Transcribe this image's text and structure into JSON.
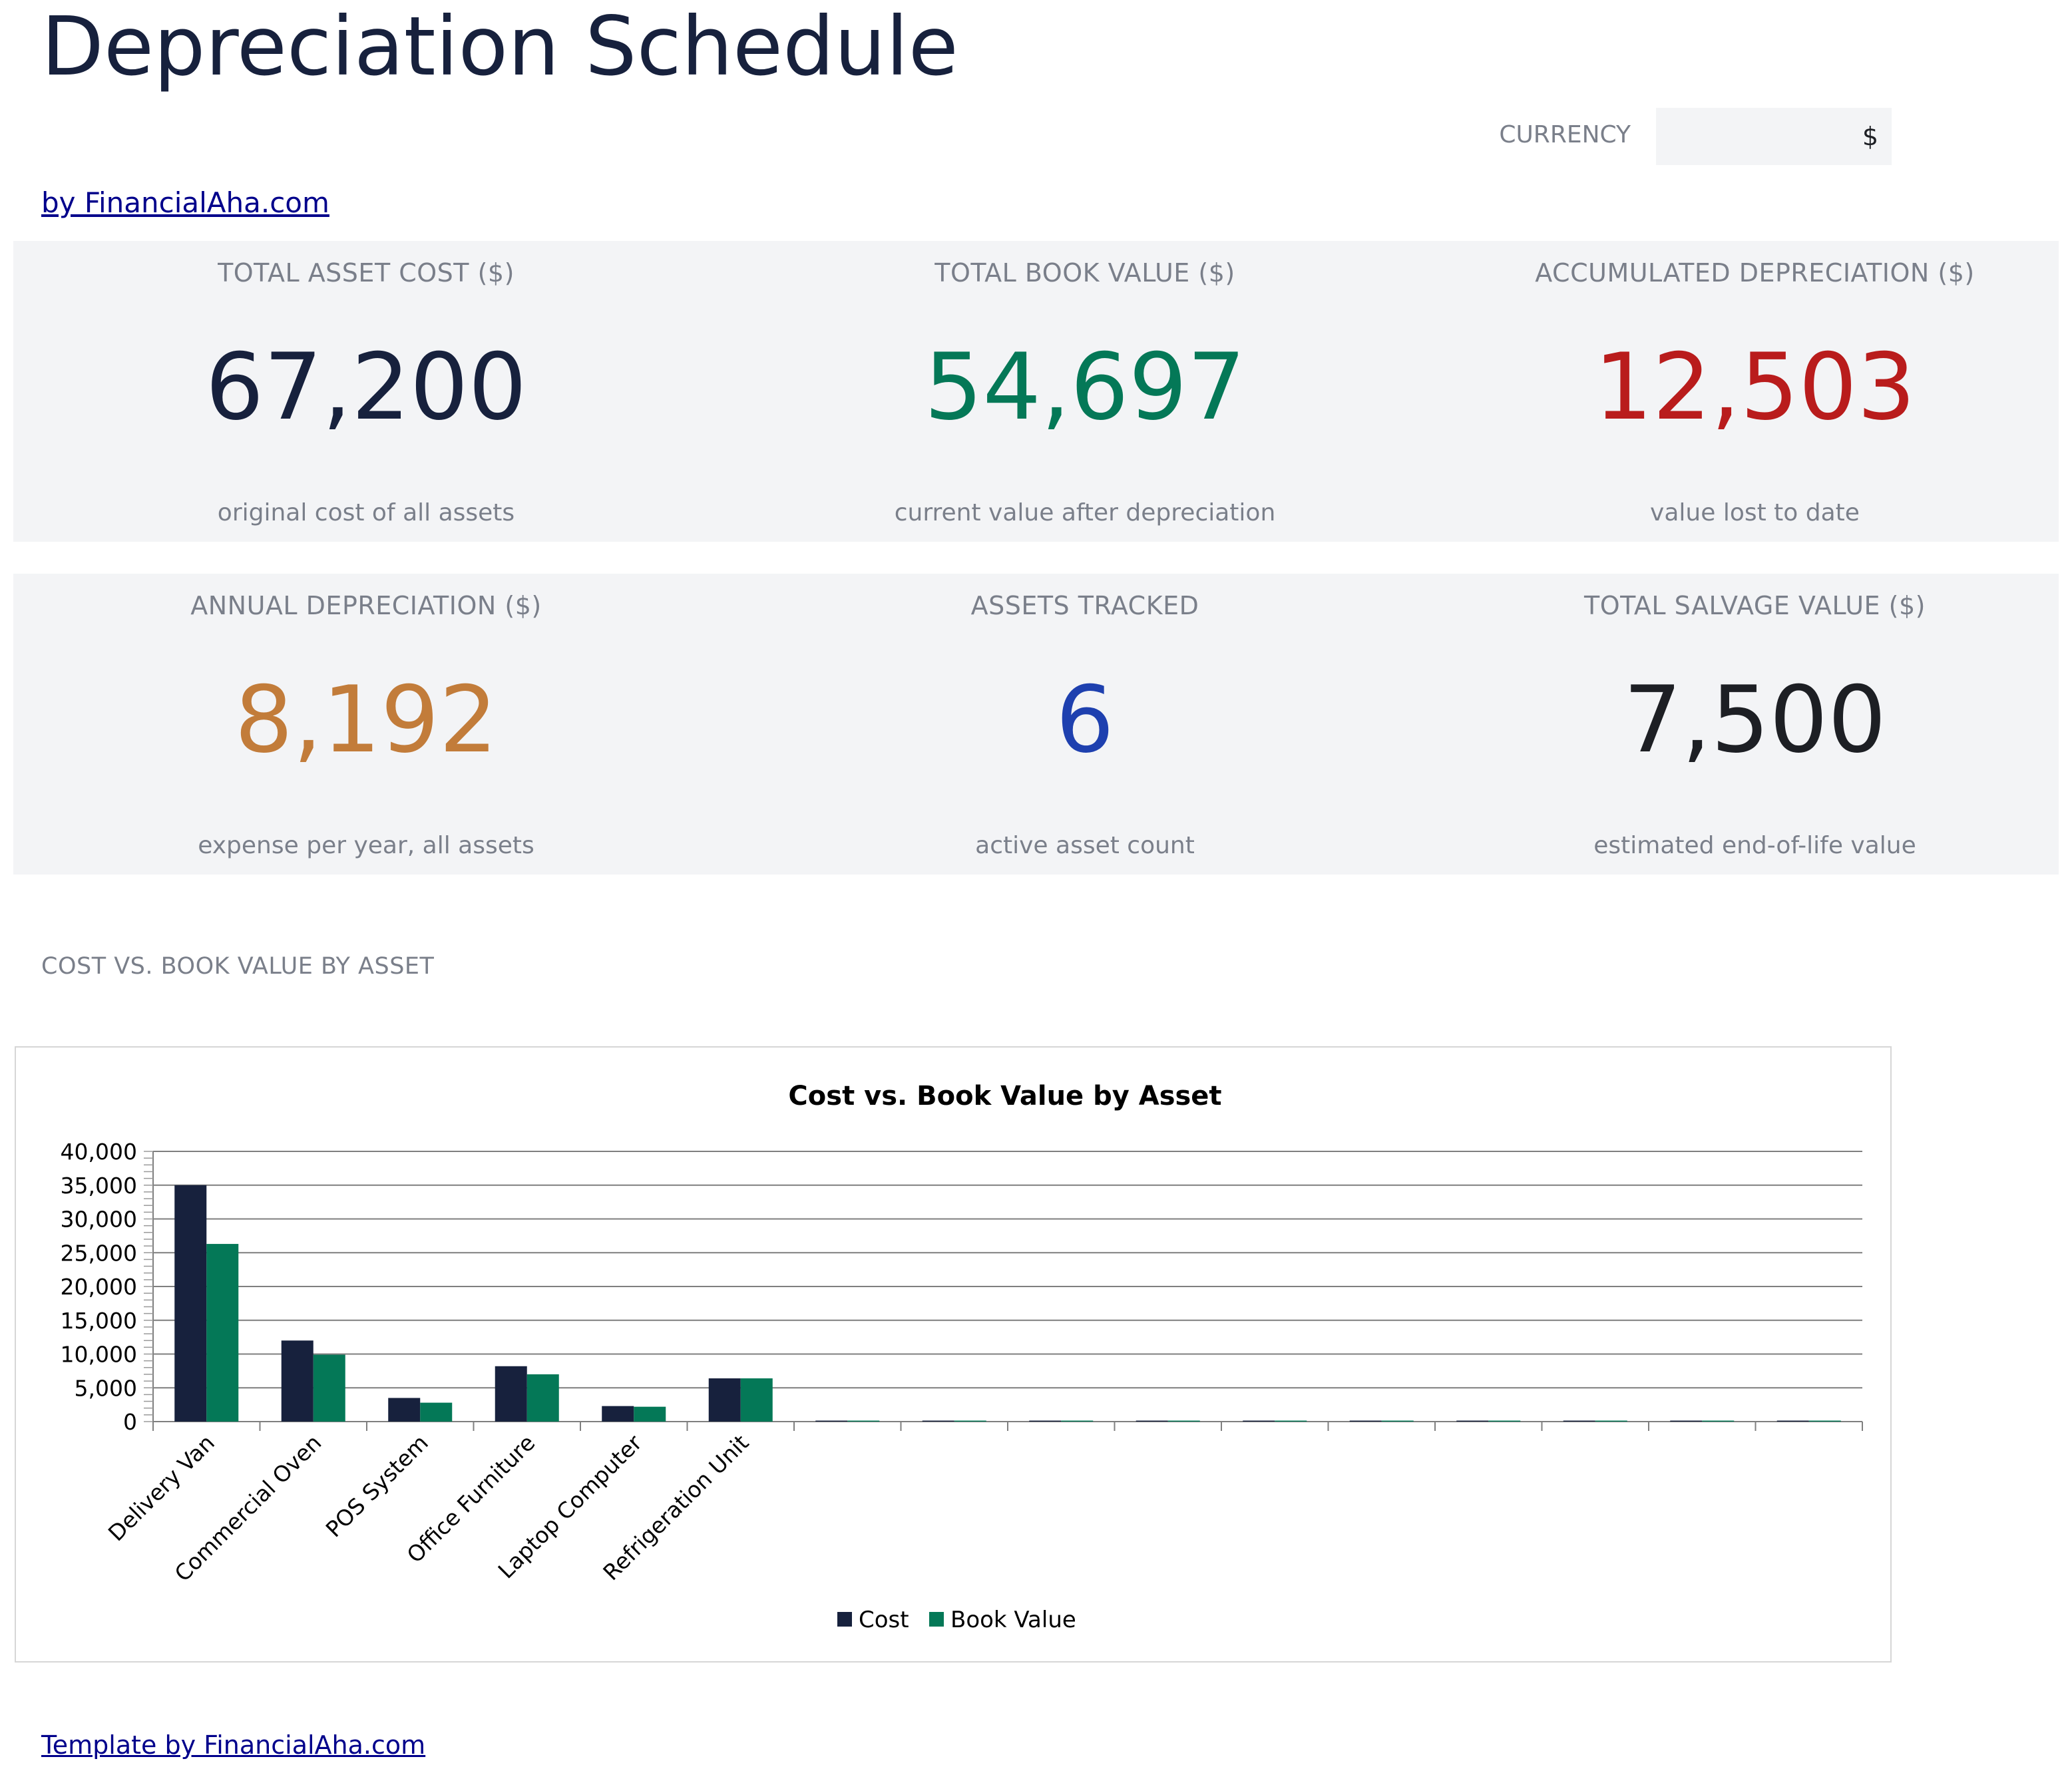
{
  "header": {
    "title": "Depreciation Schedule",
    "byline": "by FinancialAha.com",
    "currency_label": "CURRENCY",
    "currency_value": "$"
  },
  "kpis": [
    {
      "label": "TOTAL ASSET COST ($)",
      "value": "67,200",
      "sub": "original cost of all assets",
      "color": "#17213d"
    },
    {
      "label": "TOTAL BOOK VALUE ($)",
      "value": "54,697",
      "sub": "current value after depreciation",
      "color": "#047857"
    },
    {
      "label": "ACCUMULATED DEPRECIATION ($)",
      "value": "12,503",
      "sub": "value lost to date",
      "color": "#b91c1c"
    },
    {
      "label": "ANNUAL DEPRECIATION ($)",
      "value": "8,192",
      "sub": "expense per year, all assets",
      "color": "#c27c3a"
    },
    {
      "label": "ASSETS TRACKED",
      "value": "6",
      "sub": "active asset count",
      "color": "#1e40af"
    },
    {
      "label": "TOTAL SALVAGE VALUE ($)",
      "value": "7,500",
      "sub": "estimated end-of-life value",
      "color": "#1d1f24"
    }
  ],
  "section": {
    "heading": "COST VS. BOOK VALUE BY ASSET"
  },
  "footer": {
    "link": "Template by FinancialAha.com"
  },
  "chart_data": {
    "type": "bar",
    "title": "Cost vs. Book Value by Asset",
    "categories": [
      "Delivery Van",
      "Commercial Oven",
      "POS System",
      "Office Furniture",
      "Laptop Computer",
      "Refrigeration Unit",
      "",
      "",
      "",
      "",
      "",
      "",
      "",
      "",
      "",
      ""
    ],
    "series": [
      {
        "name": "Cost",
        "color": "#17213d",
        "values": [
          35000,
          12000,
          3500,
          8200,
          2300,
          6400,
          0,
          0,
          0,
          0,
          0,
          0,
          0,
          0,
          0,
          0
        ]
      },
      {
        "name": "Book Value",
        "color": "#047857",
        "values": [
          26300,
          9900,
          2800,
          7000,
          2200,
          6400,
          0,
          0,
          0,
          0,
          0,
          0,
          0,
          0,
          0,
          0
        ]
      }
    ],
    "ylim": [
      0,
      40000
    ],
    "yticks": [
      "0",
      "5,000",
      "10,000",
      "15,000",
      "20,000",
      "25,000",
      "30,000",
      "35,000",
      "40,000"
    ],
    "xlabel": "",
    "ylabel": "",
    "grid": true,
    "legend_position": "bottom"
  }
}
